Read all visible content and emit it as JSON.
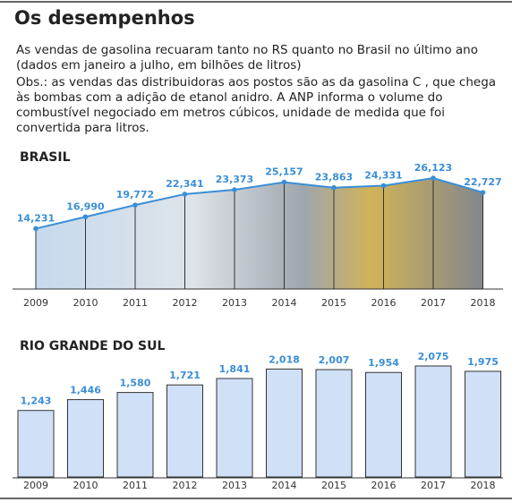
{
  "header": {
    "title": "Os desempenhos",
    "subtitle": "As vendas de gasolina recuaram tanto no RS quanto no Brasil no último ano (dados em janeiro a julho, em bilhões de litros)",
    "note": "Obs.: as vendas das distribuidoras aos postos são as da gasolina C , que chega às bombas com a adição de etanol anidro. A ANP  informa o volume do combustível negociado em metros cúbicos, unidade de medida que foi convertida para litros."
  },
  "chart_data": [
    {
      "type": "area",
      "title": "BRASIL",
      "categories": [
        "2009",
        "2010",
        "2011",
        "2012",
        "2013",
        "2014",
        "2015",
        "2016",
        "2017",
        "2018"
      ],
      "values": [
        14231,
        16990,
        19772,
        22341,
        23373,
        25157,
        23863,
        24331,
        26123,
        22727
      ],
      "value_labels": [
        "14,231",
        "16,990",
        "19,772",
        "22,341",
        "23,373",
        "25,157",
        "23,863",
        "24,331",
        "26,123",
        "22,727"
      ],
      "color": "#3a8ed6"
    },
    {
      "type": "bar",
      "title": "RIO GRANDE DO SUL",
      "categories": [
        "2009",
        "2010",
        "2011",
        "2012",
        "2013",
        "2014",
        "2015",
        "2016",
        "2017",
        "2018"
      ],
      "values": [
        1243,
        1446,
        1580,
        1721,
        1841,
        2018,
        2007,
        1954,
        2075,
        1975
      ],
      "value_labels": [
        "1,243",
        "1,446",
        "1,580",
        "1,721",
        "1,841",
        "2,018",
        "2,007",
        "1,954",
        "2,075",
        "1,975"
      ],
      "color": "#cfe0f7"
    }
  ]
}
